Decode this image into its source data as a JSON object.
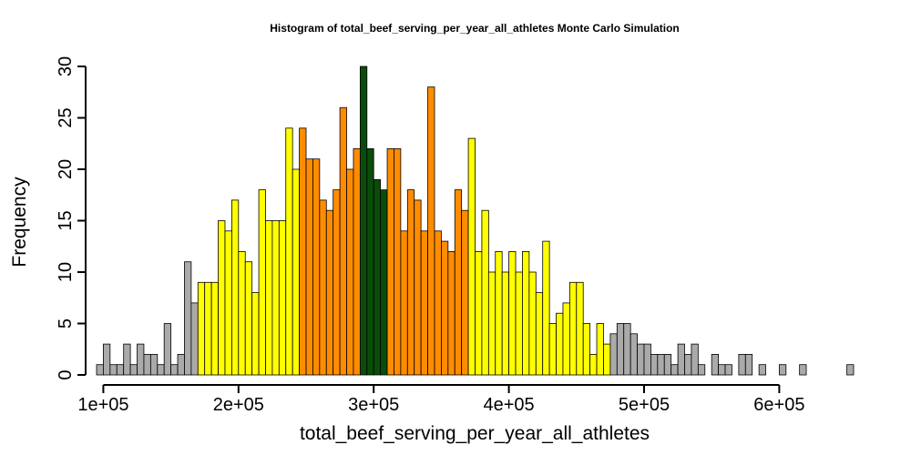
{
  "chart_data": {
    "type": "bar",
    "title": "Histogram of  total_beef_serving_per_year_all_athletes  Monte Carlo Simulation",
    "xlabel": "total_beef_serving_per_year_all_athletes",
    "ylabel": "Frequency",
    "xlim": [
      95000,
      655000
    ],
    "ylim": [
      0,
      30
    ],
    "bin_start": 95000,
    "bin_width": 5000,
    "x_ticks": [
      100000,
      200000,
      300000,
      400000,
      500000,
      600000
    ],
    "x_tick_labels": [
      "1e+05",
      "2e+05",
      "3e+05",
      "4e+05",
      "5e+05",
      "6e+05"
    ],
    "y_ticks": [
      0,
      5,
      10,
      15,
      20,
      25,
      30
    ],
    "y_tick_labels": [
      "0",
      "5",
      "10",
      "15",
      "20",
      "25",
      "30"
    ],
    "grid": false,
    "legend": "none",
    "colors": {
      "tail": "#aaaaaa",
      "outer": "#ffff00",
      "inner": "#ff8c00",
      "center": "#0a4d0a",
      "border": "#000000"
    },
    "bins": [
      {
        "x0": 95000,
        "x1": 100000,
        "count": 1,
        "band": "tail"
      },
      {
        "x0": 100000,
        "x1": 105000,
        "count": 3,
        "band": "tail"
      },
      {
        "x0": 105000,
        "x1": 110000,
        "count": 1,
        "band": "tail"
      },
      {
        "x0": 110000,
        "x1": 115000,
        "count": 1,
        "band": "tail"
      },
      {
        "x0": 115000,
        "x1": 120000,
        "count": 3,
        "band": "tail"
      },
      {
        "x0": 120000,
        "x1": 125000,
        "count": 1,
        "band": "tail"
      },
      {
        "x0": 125000,
        "x1": 130000,
        "count": 3,
        "band": "tail"
      },
      {
        "x0": 130000,
        "x1": 135000,
        "count": 2,
        "band": "tail"
      },
      {
        "x0": 135000,
        "x1": 140000,
        "count": 2,
        "band": "tail"
      },
      {
        "x0": 140000,
        "x1": 145000,
        "count": 1,
        "band": "tail"
      },
      {
        "x0": 145000,
        "x1": 150000,
        "count": 5,
        "band": "tail"
      },
      {
        "x0": 150000,
        "x1": 155000,
        "count": 1,
        "band": "tail"
      },
      {
        "x0": 155000,
        "x1": 160000,
        "count": 2,
        "band": "tail"
      },
      {
        "x0": 160000,
        "x1": 165000,
        "count": 11,
        "band": "tail"
      },
      {
        "x0": 165000,
        "x1": 170000,
        "count": 7,
        "band": "tail"
      },
      {
        "x0": 170000,
        "x1": 175000,
        "count": 9,
        "band": "outer"
      },
      {
        "x0": 175000,
        "x1": 180000,
        "count": 9,
        "band": "outer"
      },
      {
        "x0": 180000,
        "x1": 185000,
        "count": 9,
        "band": "outer"
      },
      {
        "x0": 185000,
        "x1": 190000,
        "count": 15,
        "band": "outer"
      },
      {
        "x0": 190000,
        "x1": 195000,
        "count": 14,
        "band": "outer"
      },
      {
        "x0": 195000,
        "x1": 200000,
        "count": 17,
        "band": "outer"
      },
      {
        "x0": 200000,
        "x1": 205000,
        "count": 12,
        "band": "outer"
      },
      {
        "x0": 205000,
        "x1": 210000,
        "count": 11,
        "band": "outer"
      },
      {
        "x0": 210000,
        "x1": 215000,
        "count": 8,
        "band": "outer"
      },
      {
        "x0": 215000,
        "x1": 220000,
        "count": 18,
        "band": "outer"
      },
      {
        "x0": 220000,
        "x1": 225000,
        "count": 15,
        "band": "outer"
      },
      {
        "x0": 225000,
        "x1": 230000,
        "count": 15,
        "band": "outer"
      },
      {
        "x0": 230000,
        "x1": 235000,
        "count": 15,
        "band": "outer"
      },
      {
        "x0": 235000,
        "x1": 240000,
        "count": 24,
        "band": "outer"
      },
      {
        "x0": 240000,
        "x1": 245000,
        "count": 20,
        "band": "outer"
      },
      {
        "x0": 245000,
        "x1": 250000,
        "count": 24,
        "band": "inner"
      },
      {
        "x0": 250000,
        "x1": 255000,
        "count": 21,
        "band": "inner"
      },
      {
        "x0": 255000,
        "x1": 260000,
        "count": 21,
        "band": "inner"
      },
      {
        "x0": 260000,
        "x1": 265000,
        "count": 17,
        "band": "inner"
      },
      {
        "x0": 265000,
        "x1": 270000,
        "count": 16,
        "band": "inner"
      },
      {
        "x0": 270000,
        "x1": 275000,
        "count": 18,
        "band": "inner"
      },
      {
        "x0": 275000,
        "x1": 280000,
        "count": 26,
        "band": "inner"
      },
      {
        "x0": 280000,
        "x1": 285000,
        "count": 20,
        "band": "inner"
      },
      {
        "x0": 285000,
        "x1": 290000,
        "count": 22,
        "band": "inner"
      },
      {
        "x0": 290000,
        "x1": 295000,
        "count": 30,
        "band": "center"
      },
      {
        "x0": 295000,
        "x1": 300000,
        "count": 22,
        "band": "center"
      },
      {
        "x0": 300000,
        "x1": 305000,
        "count": 19,
        "band": "center"
      },
      {
        "x0": 305000,
        "x1": 310000,
        "count": 18,
        "band": "center"
      },
      {
        "x0": 310000,
        "x1": 315000,
        "count": 22,
        "band": "inner"
      },
      {
        "x0": 315000,
        "x1": 320000,
        "count": 22,
        "band": "inner"
      },
      {
        "x0": 320000,
        "x1": 325000,
        "count": 14,
        "band": "inner"
      },
      {
        "x0": 325000,
        "x1": 330000,
        "count": 18,
        "band": "inner"
      },
      {
        "x0": 330000,
        "x1": 335000,
        "count": 17,
        "band": "inner"
      },
      {
        "x0": 335000,
        "x1": 340000,
        "count": 14,
        "band": "inner"
      },
      {
        "x0": 340000,
        "x1": 345000,
        "count": 28,
        "band": "inner"
      },
      {
        "x0": 345000,
        "x1": 350000,
        "count": 14,
        "band": "inner"
      },
      {
        "x0": 350000,
        "x1": 355000,
        "count": 13,
        "band": "inner"
      },
      {
        "x0": 355000,
        "x1": 360000,
        "count": 12,
        "band": "inner"
      },
      {
        "x0": 360000,
        "x1": 365000,
        "count": 18,
        "band": "inner"
      },
      {
        "x0": 365000,
        "x1": 370000,
        "count": 16,
        "band": "inner"
      },
      {
        "x0": 370000,
        "x1": 375000,
        "count": 23,
        "band": "outer"
      },
      {
        "x0": 375000,
        "x1": 380000,
        "count": 12,
        "band": "outer"
      },
      {
        "x0": 380000,
        "x1": 385000,
        "count": 16,
        "band": "outer"
      },
      {
        "x0": 385000,
        "x1": 390000,
        "count": 10,
        "band": "outer"
      },
      {
        "x0": 390000,
        "x1": 395000,
        "count": 12,
        "band": "outer"
      },
      {
        "x0": 395000,
        "x1": 400000,
        "count": 10,
        "band": "outer"
      },
      {
        "x0": 400000,
        "x1": 405000,
        "count": 12,
        "band": "outer"
      },
      {
        "x0": 405000,
        "x1": 410000,
        "count": 10,
        "band": "outer"
      },
      {
        "x0": 410000,
        "x1": 415000,
        "count": 12,
        "band": "outer"
      },
      {
        "x0": 415000,
        "x1": 420000,
        "count": 10,
        "band": "outer"
      },
      {
        "x0": 420000,
        "x1": 425000,
        "count": 8,
        "band": "outer"
      },
      {
        "x0": 425000,
        "x1": 430000,
        "count": 13,
        "band": "outer"
      },
      {
        "x0": 430000,
        "x1": 435000,
        "count": 5,
        "band": "outer"
      },
      {
        "x0": 435000,
        "x1": 440000,
        "count": 6,
        "band": "outer"
      },
      {
        "x0": 440000,
        "x1": 445000,
        "count": 7,
        "band": "outer"
      },
      {
        "x0": 445000,
        "x1": 450000,
        "count": 9,
        "band": "outer"
      },
      {
        "x0": 450000,
        "x1": 455000,
        "count": 9,
        "band": "outer"
      },
      {
        "x0": 455000,
        "x1": 460000,
        "count": 5,
        "band": "outer"
      },
      {
        "x0": 460000,
        "x1": 465000,
        "count": 2,
        "band": "outer"
      },
      {
        "x0": 465000,
        "x1": 470000,
        "count": 5,
        "band": "outer"
      },
      {
        "x0": 470000,
        "x1": 475000,
        "count": 3,
        "band": "outer"
      },
      {
        "x0": 475000,
        "x1": 480000,
        "count": 4,
        "band": "tail"
      },
      {
        "x0": 480000,
        "x1": 485000,
        "count": 5,
        "band": "tail"
      },
      {
        "x0": 485000,
        "x1": 490000,
        "count": 5,
        "band": "tail"
      },
      {
        "x0": 490000,
        "x1": 495000,
        "count": 4,
        "band": "tail"
      },
      {
        "x0": 495000,
        "x1": 500000,
        "count": 3,
        "band": "tail"
      },
      {
        "x0": 500000,
        "x1": 505000,
        "count": 3,
        "band": "tail"
      },
      {
        "x0": 505000,
        "x1": 510000,
        "count": 2,
        "band": "tail"
      },
      {
        "x0": 510000,
        "x1": 515000,
        "count": 2,
        "band": "tail"
      },
      {
        "x0": 515000,
        "x1": 520000,
        "count": 2,
        "band": "tail"
      },
      {
        "x0": 520000,
        "x1": 525000,
        "count": 1,
        "band": "tail"
      },
      {
        "x0": 525000,
        "x1": 530000,
        "count": 3,
        "band": "tail"
      },
      {
        "x0": 530000,
        "x1": 535000,
        "count": 2,
        "band": "tail"
      },
      {
        "x0": 535000,
        "x1": 540000,
        "count": 3,
        "band": "tail"
      },
      {
        "x0": 540000,
        "x1": 545000,
        "count": 1,
        "band": "tail"
      },
      {
        "x0": 545000,
        "x1": 550000,
        "count": 0,
        "band": "tail"
      },
      {
        "x0": 550000,
        "x1": 555000,
        "count": 2,
        "band": "tail"
      },
      {
        "x0": 555000,
        "x1": 560000,
        "count": 1,
        "band": "tail"
      },
      {
        "x0": 560000,
        "x1": 565000,
        "count": 1,
        "band": "tail"
      },
      {
        "x0": 565000,
        "x1": 570000,
        "count": 0,
        "band": "tail"
      },
      {
        "x0": 570000,
        "x1": 575000,
        "count": 2,
        "band": "tail"
      },
      {
        "x0": 575000,
        "x1": 580000,
        "count": 2,
        "band": "tail"
      },
      {
        "x0": 580000,
        "x1": 585000,
        "count": 0,
        "band": "tail"
      },
      {
        "x0": 585000,
        "x1": 590000,
        "count": 1,
        "band": "tail"
      },
      {
        "x0": 590000,
        "x1": 595000,
        "count": 0,
        "band": "tail"
      },
      {
        "x0": 595000,
        "x1": 600000,
        "count": 0,
        "band": "tail"
      },
      {
        "x0": 600000,
        "x1": 605000,
        "count": 1,
        "band": "tail"
      },
      {
        "x0": 605000,
        "x1": 610000,
        "count": 0,
        "band": "tail"
      },
      {
        "x0": 610000,
        "x1": 615000,
        "count": 0,
        "band": "tail"
      },
      {
        "x0": 615000,
        "x1": 620000,
        "count": 1,
        "band": "tail"
      },
      {
        "x0": 620000,
        "x1": 625000,
        "count": 0,
        "band": "tail"
      },
      {
        "x0": 625000,
        "x1": 630000,
        "count": 0,
        "band": "tail"
      },
      {
        "x0": 630000,
        "x1": 635000,
        "count": 0,
        "band": "tail"
      },
      {
        "x0": 635000,
        "x1": 640000,
        "count": 0,
        "band": "tail"
      },
      {
        "x0": 640000,
        "x1": 645000,
        "count": 0,
        "band": "tail"
      },
      {
        "x0": 645000,
        "x1": 650000,
        "count": 0,
        "band": "tail"
      },
      {
        "x0": 650000,
        "x1": 655000,
        "count": 1,
        "band": "tail"
      }
    ]
  }
}
